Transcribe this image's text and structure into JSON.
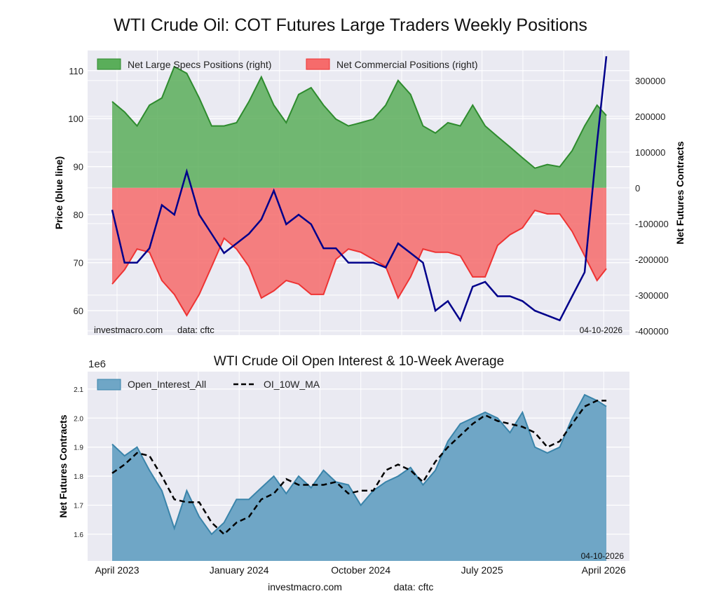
{
  "title": "WTI Crude Oil: COT Futures Large Traders Weekly Positions",
  "colors": {
    "background": "#eaeaf2",
    "specs_fill": "#5aae5a",
    "specs_line": "#2e8b2e",
    "comm_fill": "#f66b6b",
    "comm_line": "#ee3333",
    "price": "#00008b",
    "oi_fill": "#6fa6c6",
    "oi_line": "#3a84aa",
    "ma": "#000000"
  },
  "chart_data": [
    {
      "type": "area",
      "title": "WTI Crude Oil: COT Futures Large Traders Weekly Positions",
      "ylabel": "Price (blue line)",
      "ylabel_right": "Net Futures Contracts",
      "ylim": [
        54.9,
        114.2
      ],
      "ylim_right": [
        -412000,
        384000
      ],
      "yticks": [
        60,
        70,
        80,
        90,
        100,
        110
      ],
      "yticks_right": [
        -400000,
        -300000,
        -200000,
        -100000,
        0,
        100000,
        200000,
        300000
      ],
      "grid": true,
      "legend": "top-left",
      "watermark": "investmacro.com",
      "source": "data: cftc",
      "date_label": "04-10-2026",
      "x": [
        "2023-03-21",
        "2023-04-18",
        "2023-05-16",
        "2023-06-13",
        "2023-07-11",
        "2023-08-08",
        "2023-09-05",
        "2023-10-03",
        "2023-10-31",
        "2023-11-28",
        "2023-12-26",
        "2024-01-23",
        "2024-02-20",
        "2024-03-19",
        "2024-04-16",
        "2024-05-14",
        "2024-06-11",
        "2024-07-09",
        "2024-08-06",
        "2024-09-03",
        "2024-10-01",
        "2024-10-29",
        "2024-11-26",
        "2024-12-24",
        "2025-01-21",
        "2025-02-18",
        "2025-03-18",
        "2025-04-15",
        "2025-05-13",
        "2025-06-10",
        "2025-07-08",
        "2025-08-05",
        "2025-09-02",
        "2025-09-30",
        "2025-10-28",
        "2025-11-25",
        "2025-12-23",
        "2026-01-20",
        "2026-02-17",
        "2026-03-17",
        "2026-04-07"
      ],
      "series": [
        {
          "name": "Net Large Specs Positions (right)",
          "axis": "right",
          "values": [
            241000,
            212000,
            173000,
            231000,
            251000,
            339000,
            320000,
            251000,
            173000,
            173000,
            182000,
            241000,
            310000,
            231000,
            182000,
            261000,
            280000,
            231000,
            192000,
            173000,
            182000,
            192000,
            231000,
            300000,
            261000,
            173000,
            153000,
            182000,
            173000,
            231000,
            173000,
            143000,
            114000,
            84000,
            55000,
            65000,
            59000,
            104000,
            173000,
            231000,
            202000
          ]
        },
        {
          "name": "Net Commercial Positions (right)",
          "axis": "right",
          "values": [
            -269000,
            -229000,
            -171000,
            -180000,
            -259000,
            -298000,
            -357000,
            -298000,
            -220000,
            -141000,
            -171000,
            -220000,
            -308000,
            -288000,
            -259000,
            -269000,
            -298000,
            -298000,
            -200000,
            -171000,
            -180000,
            -200000,
            -220000,
            -308000,
            -249000,
            -171000,
            -180000,
            -180000,
            -190000,
            -249000,
            -249000,
            -161000,
            -131000,
            -112000,
            -63000,
            -73000,
            -73000,
            -122000,
            -190000,
            -259000,
            -226000
          ]
        },
        {
          "axis": "left",
          "values": [
            81,
            70,
            70,
            73,
            82,
            80,
            89,
            80,
            76,
            72,
            74,
            76,
            79,
            85,
            78,
            80,
            78,
            73,
            73,
            70,
            70,
            70,
            69,
            74,
            72,
            70,
            60,
            62,
            58,
            65,
            66,
            63,
            63,
            62,
            60,
            59,
            58,
            63,
            68,
            95,
            113
          ]
        }
      ]
    },
    {
      "type": "area",
      "title": "WTI Crude Oil Open Interest & 10-Week Average",
      "ylabel": "Net Futures Contracts",
      "scale_label": "1e6",
      "ylim": [
        1.508,
        2.16
      ],
      "yticks": [
        1.6,
        1.7,
        1.8,
        1.9,
        2.0,
        2.1
      ],
      "xticks": [
        "2023-04-01",
        "2024-01-01",
        "2024-10-01",
        "2025-07-01",
        "2026-04-01"
      ],
      "xtick_labels": [
        "April 2023",
        "January 2024",
        "October 2024",
        "July 2025",
        "April 2026"
      ],
      "grid": true,
      "legend": "top-left",
      "date_label": "04-10-2026",
      "watermark": "investmacro.com",
      "source": "data: cftc",
      "series": [
        {
          "name": "Open_Interest_All",
          "values": [
            1.91,
            1.87,
            1.9,
            1.82,
            1.75,
            1.62,
            1.75,
            1.66,
            1.6,
            1.64,
            1.72,
            1.72,
            1.76,
            1.8,
            1.74,
            1.8,
            1.76,
            1.82,
            1.78,
            1.77,
            1.7,
            1.75,
            1.78,
            1.8,
            1.83,
            1.77,
            1.82,
            1.92,
            1.98,
            2.0,
            2.02,
            2.0,
            1.95,
            2.02,
            1.9,
            1.88,
            1.9,
            2.0,
            2.08,
            2.06,
            2.04
          ]
        },
        {
          "name": "OI_10W_MA",
          "values": [
            1.81,
            1.84,
            1.88,
            1.87,
            1.8,
            1.72,
            1.71,
            1.71,
            1.64,
            1.6,
            1.64,
            1.66,
            1.72,
            1.74,
            1.79,
            1.77,
            1.77,
            1.77,
            1.78,
            1.74,
            1.75,
            1.75,
            1.82,
            1.84,
            1.82,
            1.78,
            1.85,
            1.9,
            1.94,
            1.98,
            2.01,
            1.99,
            1.98,
            1.97,
            1.95,
            1.9,
            1.92,
            1.98,
            2.04,
            2.06,
            2.06
          ]
        }
      ]
    }
  ]
}
